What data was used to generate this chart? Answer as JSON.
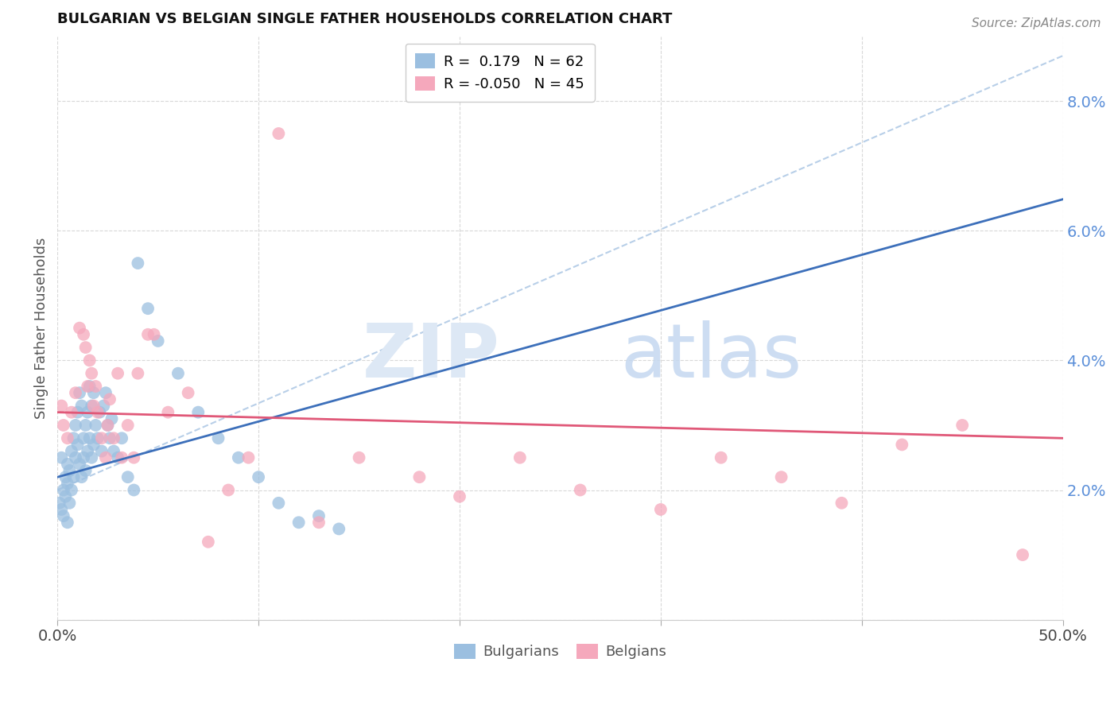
{
  "title": "BULGARIAN VS BELGIAN SINGLE FATHER HOUSEHOLDS CORRELATION CHART",
  "source": "Source: ZipAtlas.com",
  "ylabel": "Single Father Households",
  "xlim": [
    0.0,
    0.5
  ],
  "ylim": [
    0.0,
    0.09
  ],
  "ytick_vals": [
    0.0,
    0.02,
    0.04,
    0.06,
    0.08
  ],
  "ytick_labels": [
    "",
    "2.0%",
    "4.0%",
    "6.0%",
    "8.0%"
  ],
  "xtick_vals": [
    0.0,
    0.1,
    0.2,
    0.3,
    0.4,
    0.5
  ],
  "xtick_labels": [
    "0.0%",
    "",
    "",
    "",
    "",
    "50.0%"
  ],
  "legend_R_blue": " 0.179",
  "legend_N_blue": "62",
  "legend_R_pink": "-0.050",
  "legend_N_pink": "45",
  "blue_scatter_color": "#9bbfe0",
  "pink_scatter_color": "#f5a8bc",
  "blue_line_color": "#3c6fba",
  "pink_line_color": "#e05878",
  "dashed_color": "#b8cfe8",
  "bg_color": "#ffffff",
  "grid_color": "#d8d8d8",
  "ytick_color": "#5b8fd9",
  "bulgarians_x": [
    0.001,
    0.002,
    0.002,
    0.003,
    0.003,
    0.004,
    0.004,
    0.005,
    0.005,
    0.005,
    0.006,
    0.006,
    0.007,
    0.007,
    0.008,
    0.008,
    0.009,
    0.009,
    0.01,
    0.01,
    0.011,
    0.011,
    0.012,
    0.012,
    0.013,
    0.013,
    0.014,
    0.014,
    0.015,
    0.015,
    0.016,
    0.016,
    0.017,
    0.017,
    0.018,
    0.018,
    0.019,
    0.02,
    0.021,
    0.022,
    0.023,
    0.024,
    0.025,
    0.026,
    0.027,
    0.028,
    0.03,
    0.032,
    0.035,
    0.038,
    0.04,
    0.045,
    0.05,
    0.06,
    0.07,
    0.08,
    0.09,
    0.1,
    0.11,
    0.12,
    0.13,
    0.14
  ],
  "bulgarians_y": [
    0.018,
    0.025,
    0.017,
    0.02,
    0.016,
    0.022,
    0.019,
    0.024,
    0.021,
    0.015,
    0.023,
    0.018,
    0.026,
    0.02,
    0.028,
    0.022,
    0.03,
    0.025,
    0.032,
    0.027,
    0.035,
    0.024,
    0.033,
    0.022,
    0.028,
    0.025,
    0.03,
    0.023,
    0.032,
    0.026,
    0.036,
    0.028,
    0.033,
    0.025,
    0.035,
    0.027,
    0.03,
    0.028,
    0.032,
    0.026,
    0.033,
    0.035,
    0.03,
    0.028,
    0.031,
    0.026,
    0.025,
    0.028,
    0.022,
    0.02,
    0.055,
    0.048,
    0.043,
    0.038,
    0.032,
    0.028,
    0.025,
    0.022,
    0.018,
    0.015,
    0.016,
    0.014
  ],
  "belgians_x": [
    0.002,
    0.003,
    0.005,
    0.007,
    0.009,
    0.011,
    0.013,
    0.014,
    0.015,
    0.016,
    0.017,
    0.018,
    0.019,
    0.02,
    0.022,
    0.024,
    0.025,
    0.026,
    0.028,
    0.03,
    0.032,
    0.035,
    0.038,
    0.04,
    0.045,
    0.048,
    0.055,
    0.065,
    0.075,
    0.085,
    0.095,
    0.11,
    0.13,
    0.15,
    0.18,
    0.2,
    0.23,
    0.26,
    0.3,
    0.33,
    0.36,
    0.39,
    0.42,
    0.45,
    0.48
  ],
  "belgians_y": [
    0.033,
    0.03,
    0.028,
    0.032,
    0.035,
    0.045,
    0.044,
    0.042,
    0.036,
    0.04,
    0.038,
    0.033,
    0.036,
    0.032,
    0.028,
    0.025,
    0.03,
    0.034,
    0.028,
    0.038,
    0.025,
    0.03,
    0.025,
    0.038,
    0.044,
    0.044,
    0.032,
    0.035,
    0.012,
    0.02,
    0.025,
    0.075,
    0.015,
    0.025,
    0.022,
    0.019,
    0.025,
    0.02,
    0.017,
    0.025,
    0.022,
    0.018,
    0.027,
    0.03,
    0.01
  ]
}
